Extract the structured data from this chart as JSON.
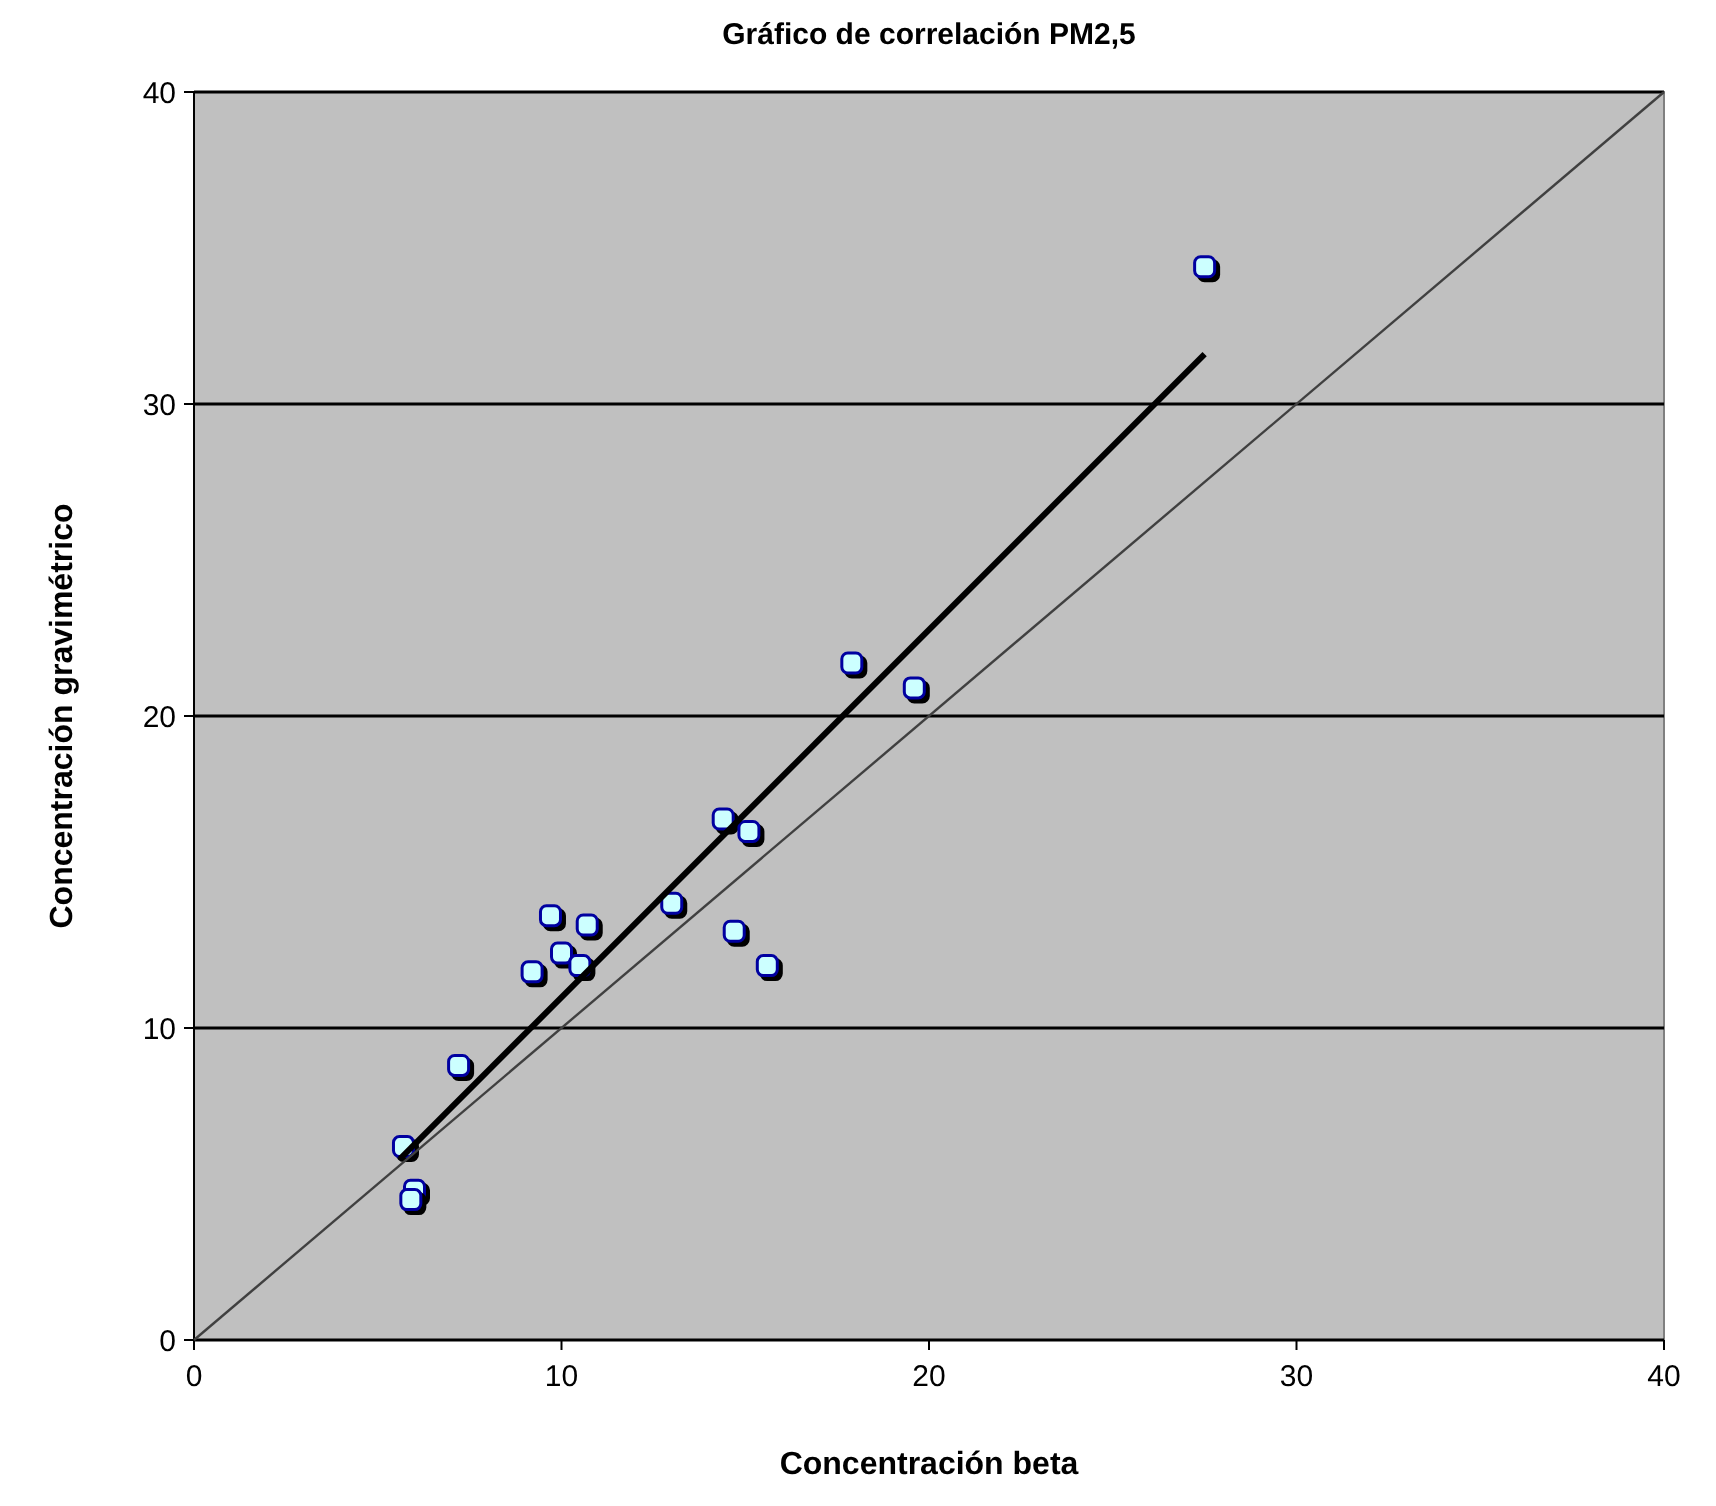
{
  "chart_data": {
    "type": "scatter",
    "title": "Gráfico de correlación PM2,5",
    "xlabel": "Concentración beta",
    "ylabel": "Concentración gravimétrico",
    "xlim": [
      0,
      40
    ],
    "ylim": [
      0,
      40
    ],
    "xticks": [
      0,
      10,
      20,
      30,
      40
    ],
    "yticks": [
      0,
      10,
      20,
      30,
      40
    ],
    "grid": "y",
    "marker": "square",
    "series": [
      {
        "color": "#0000a0",
        "x": [
          5.7,
          6.0,
          5.9,
          7.2,
          9.2,
          9.7,
          10.0,
          10.5,
          10.7,
          13.0,
          14.7,
          15.6,
          14.4,
          15.1,
          17.9,
          19.6,
          27.5
        ],
        "values": [
          6.2,
          4.8,
          4.5,
          8.8,
          11.8,
          13.6,
          12.4,
          12.0,
          13.3,
          14.0,
          13.1,
          12.0,
          16.7,
          16.3,
          21.7,
          20.9,
          34.4
        ]
      },
      {
        "type": "line",
        "color": "#000000",
        "marker": "none",
        "x": [
          5.6,
          27.5
        ],
        "values": [
          5.8,
          31.6
        ]
      },
      {
        "type": "line",
        "color": "#404040",
        "marker": "none",
        "x": [
          0,
          40
        ],
        "values": [
          0,
          40
        ]
      }
    ]
  }
}
